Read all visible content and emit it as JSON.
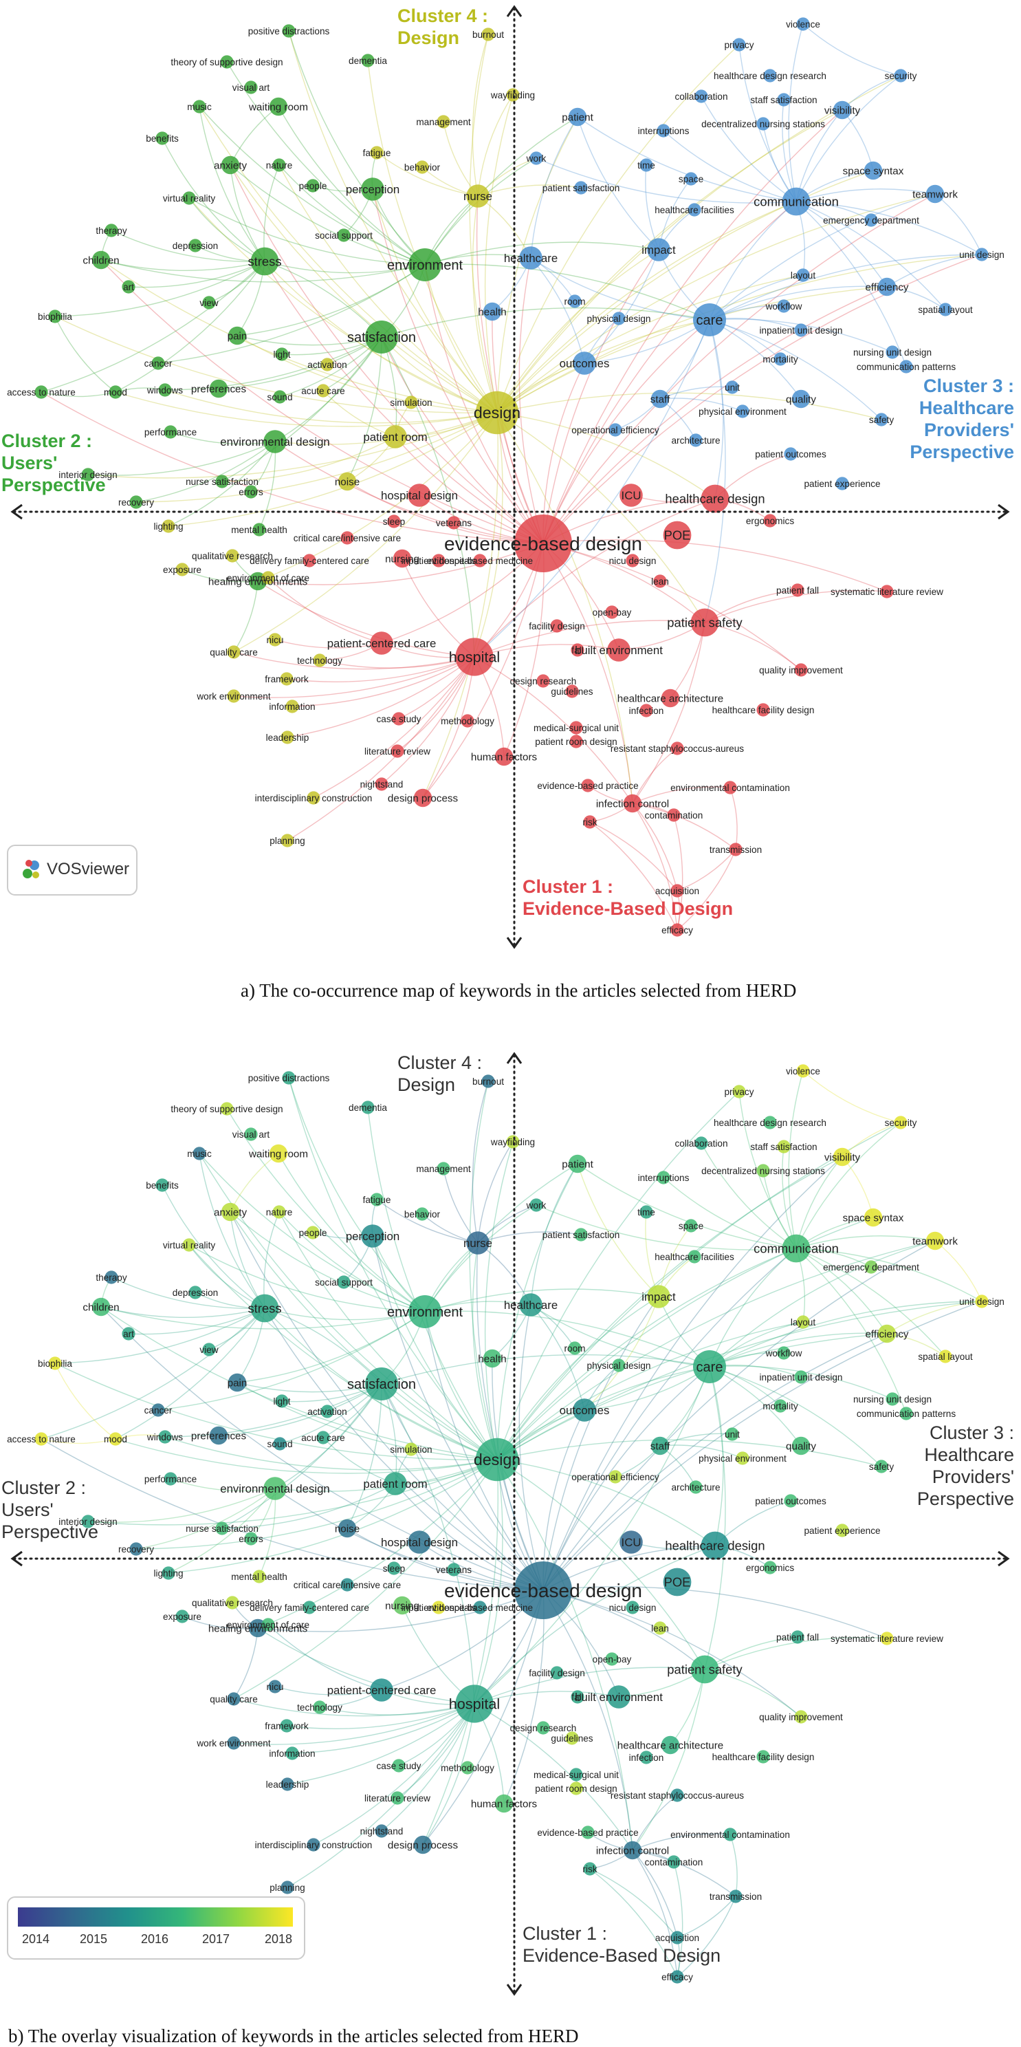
{
  "panel_a": {
    "caption": "a) The co-occurrence map of keywords in the articles selected from HERD",
    "vosviewer_label": "VOSviewer",
    "clusters": [
      {
        "id": 1,
        "title": "Cluster 1 :",
        "subtitle": "Evidence-Based Design",
        "color": "#e0464c"
      },
      {
        "id": 2,
        "title": "Cluster 2 :",
        "subtitle": "Users'",
        "subtitle2": "Perspective",
        "color": "#3aa63a"
      },
      {
        "id": 3,
        "title": "Cluster 3 :",
        "subtitle": "Healthcare",
        "subtitle2": "Providers'",
        "subtitle3": "Perspective",
        "color": "#4a90d0"
      },
      {
        "id": 4,
        "title": "Cluster 4 :",
        "subtitle": "Design",
        "color": "#b9bc1d"
      }
    ]
  },
  "panel_b": {
    "caption": "b) The overlay visualization of keywords in the articles selected from HERD",
    "clusters": [
      {
        "id": 1,
        "title": "Cluster 1 :",
        "subtitle": "Evidence-Based Design"
      },
      {
        "id": 2,
        "title": "Cluster 2 :",
        "subtitle": "Users'",
        "subtitle2": "Perspective"
      },
      {
        "id": 3,
        "title": "Cluster 3 :",
        "subtitle": "Healthcare",
        "subtitle2": "Providers'",
        "subtitle3": "Perspective"
      },
      {
        "id": 4,
        "title": "Cluster 4 :",
        "subtitle": "Design"
      }
    ],
    "legend": {
      "years": [
        "2014",
        "2015",
        "2016",
        "2017",
        "2018"
      ],
      "colors": [
        "#3b3b8f",
        "#31688e",
        "#21918c",
        "#35b779",
        "#90d743",
        "#fde725"
      ]
    }
  },
  "cluster_colors": {
    "1": "#e0464c",
    "2": "#3aa63a",
    "3": "#4a90d0",
    "4": "#c4c42a"
  },
  "keywords": [
    {
      "label": "evidence-based design",
      "cluster": 1,
      "weight": 10,
      "year": 2015.0
    },
    {
      "label": "POE",
      "cluster": 1,
      "weight": 4,
      "year": 2015.5
    },
    {
      "label": "hospital",
      "cluster": 1,
      "weight": 6,
      "year": 2016.0
    },
    {
      "label": "patient safety",
      "cluster": 1,
      "weight": 4,
      "year": 2016.4
    },
    {
      "label": "built environment",
      "cluster": 1,
      "weight": 3,
      "year": 2015.8
    },
    {
      "label": "healthcare design",
      "cluster": 1,
      "weight": 4,
      "year": 2015.6
    },
    {
      "label": "hospital design",
      "cluster": 1,
      "weight": 3,
      "year": 2015.0
    },
    {
      "label": "ICU",
      "cluster": 1,
      "weight": 3,
      "year": 2014.8
    },
    {
      "label": "patient-centered care",
      "cluster": 1,
      "weight": 3,
      "year": 2015.6
    },
    {
      "label": "nursing",
      "cluster": 1,
      "weight": 2,
      "year": 2016.8
    },
    {
      "label": "healthcare architecture",
      "cluster": 1,
      "weight": 2,
      "year": 2016.2
    },
    {
      "label": "infection control",
      "cluster": 1,
      "weight": 2,
      "year": 2015.0
    },
    {
      "label": "design process",
      "cluster": 1,
      "weight": 2,
      "year": 2015.0
    },
    {
      "label": "human factors",
      "cluster": 1,
      "weight": 2,
      "year": 2016.6
    },
    {
      "label": "case study",
      "cluster": 1,
      "weight": 1,
      "year": 2016.5
    },
    {
      "label": "methodology",
      "cluster": 1,
      "weight": 1,
      "year": 2016.6
    },
    {
      "label": "literature review",
      "cluster": 1,
      "weight": 1,
      "year": 2016.5
    },
    {
      "label": "nightstand",
      "cluster": 1,
      "weight": 1,
      "year": 2015.0
    },
    {
      "label": "evidence-based practice",
      "cluster": 1,
      "weight": 1,
      "year": 2016.5
    },
    {
      "label": "environmental contamination",
      "cluster": 1,
      "weight": 1,
      "year": 2016.0
    },
    {
      "label": "contamination",
      "cluster": 1,
      "weight": 1,
      "year": 2016.0
    },
    {
      "label": "risk",
      "cluster": 1,
      "weight": 1,
      "year": 2016.0
    },
    {
      "label": "transmission",
      "cluster": 1,
      "weight": 1,
      "year": 2015.5
    },
    {
      "label": "acquisition",
      "cluster": 1,
      "weight": 1,
      "year": 2015.5
    },
    {
      "label": "efficacy",
      "cluster": 1,
      "weight": 1,
      "year": 2015.5
    },
    {
      "label": "resistant staphylococcus-aureus",
      "cluster": 1,
      "weight": 1,
      "year": 2015.5
    },
    {
      "label": "medical-surgical unit",
      "cluster": 1,
      "weight": 1,
      "year": 2016.0
    },
    {
      "label": "patient room design",
      "cluster": 1,
      "weight": 1,
      "year": 2017.5
    },
    {
      "label": "design research",
      "cluster": 1,
      "weight": 1,
      "year": 2016.5
    },
    {
      "label": "guidelines",
      "cluster": 1,
      "weight": 1,
      "year": 2017.5
    },
    {
      "label": "healthcare facility design",
      "cluster": 1,
      "weight": 1,
      "year": 2016.5
    },
    {
      "label": "quality improvement",
      "cluster": 1,
      "weight": 1,
      "year": 2017.5
    },
    {
      "label": "systematic literature review",
      "cluster": 1,
      "weight": 1,
      "year": 2017.8
    },
    {
      "label": "patient fall",
      "cluster": 1,
      "weight": 1,
      "year": 2016.0
    },
    {
      "label": "fall",
      "cluster": 1,
      "weight": 1,
      "year": 2016.0
    },
    {
      "label": "open-bay",
      "cluster": 1,
      "weight": 1,
      "year": 2016.5
    },
    {
      "label": "lean",
      "cluster": 1,
      "weight": 1,
      "year": 2017.5
    },
    {
      "label": "nicu design",
      "cluster": 1,
      "weight": 1,
      "year": 2016.0
    },
    {
      "label": "ergonomics",
      "cluster": 1,
      "weight": 1,
      "year": 2016.5
    },
    {
      "label": "facility design",
      "cluster": 1,
      "weight": 1,
      "year": 2016.0
    },
    {
      "label": "evidence-based medicine",
      "cluster": 1,
      "weight": 1,
      "year": 2015.5
    },
    {
      "label": "inpatient hospitals",
      "cluster": 1,
      "weight": 1,
      "year": 2017.8
    },
    {
      "label": "veterans",
      "cluster": 1,
      "weight": 1,
      "year": 2016.0
    },
    {
      "label": "sleep",
      "cluster": 1,
      "weight": 1,
      "year": 2016.0
    },
    {
      "label": "critical care/intensive care",
      "cluster": 1,
      "weight": 1,
      "year": 2015.5
    },
    {
      "label": "delivery family-centered care",
      "cluster": 1,
      "weight": 1,
      "year": 2016.0
    },
    {
      "label": "infection",
      "cluster": 1,
      "weight": 1,
      "year": 2016.0
    },
    {
      "label": "healing environments",
      "cluster": 2,
      "weight": 2,
      "year": 2015.0
    },
    {
      "label": "stress",
      "cluster": 2,
      "weight": 4,
      "year": 2016.0
    },
    {
      "label": "satisfaction",
      "cluster": 2,
      "weight": 5,
      "year": 2016.0
    },
    {
      "label": "environment",
      "cluster": 2,
      "weight": 5,
      "year": 2016.3
    },
    {
      "label": "pain",
      "cluster": 2,
      "weight": 2,
      "year": 2015.0
    },
    {
      "label": "anxiety",
      "cluster": 2,
      "weight": 2,
      "year": 2017.5
    },
    {
      "label": "perception",
      "cluster": 2,
      "weight": 3,
      "year": 2015.5
    },
    {
      "label": "environmental design",
      "cluster": 2,
      "weight": 3,
      "year": 2016.6
    },
    {
      "label": "children",
      "cluster": 2,
      "weight": 2,
      "year": 2016.5
    },
    {
      "label": "mood",
      "cluster": 2,
      "weight": 1,
      "year": 2017.8
    },
    {
      "label": "biophilia",
      "cluster": 2,
      "weight": 1,
      "year": 2017.8
    },
    {
      "label": "access to nature",
      "cluster": 2,
      "weight": 1,
      "year": 2017.8
    },
    {
      "label": "nature",
      "cluster": 2,
      "weight": 1,
      "year": 2017.5
    },
    {
      "label": "music",
      "cluster": 2,
      "weight": 1,
      "year": 2015.0
    },
    {
      "label": "benefits",
      "cluster": 2,
      "weight": 1,
      "year": 2016.0
    },
    {
      "label": "virtual reality",
      "cluster": 2,
      "weight": 1,
      "year": 2017.5
    },
    {
      "label": "therapy",
      "cluster": 2,
      "weight": 1,
      "year": 2015.0
    },
    {
      "label": "depression",
      "cluster": 2,
      "weight": 1,
      "year": 2016.0
    },
    {
      "label": "art",
      "cluster": 2,
      "weight": 1,
      "year": 2016.0
    },
    {
      "label": "view",
      "cluster": 2,
      "weight": 1,
      "year": 2016.0
    },
    {
      "label": "cancer",
      "cluster": 2,
      "weight": 1,
      "year": 2015.0
    },
    {
      "label": "windows",
      "cluster": 2,
      "weight": 1,
      "year": 2016.0
    },
    {
      "label": "preferences",
      "cluster": 2,
      "weight": 2,
      "year": 2015.0
    },
    {
      "label": "light",
      "cluster": 2,
      "weight": 1,
      "year": 2016.0
    },
    {
      "label": "sound",
      "cluster": 2,
      "weight": 1,
      "year": 2015.5
    },
    {
      "label": "performance",
      "cluster": 2,
      "weight": 1,
      "year": 2016.0
    },
    {
      "label": "interior design",
      "cluster": 2,
      "weight": 1,
      "year": 2016.0
    },
    {
      "label": "recovery",
      "cluster": 2,
      "weight": 1,
      "year": 2015.0
    },
    {
      "label": "nurse satisfaction",
      "cluster": 2,
      "weight": 1,
      "year": 2016.5
    },
    {
      "label": "errors",
      "cluster": 2,
      "weight": 1,
      "year": 2016.5
    },
    {
      "label": "mental health",
      "cluster": 2,
      "weight": 1,
      "year": 2017.5
    },
    {
      "label": "positive distractions",
      "cluster": 2,
      "weight": 1,
      "year": 2016.0
    },
    {
      "label": "theory of supportive design",
      "cluster": 2,
      "weight": 1,
      "year": 2017.5
    },
    {
      "label": "visual art",
      "cluster": 2,
      "weight": 1,
      "year": 2016.5
    },
    {
      "label": "waiting room",
      "cluster": 2,
      "weight": 2,
      "year": 2017.8
    },
    {
      "label": "people",
      "cluster": 2,
      "weight": 1,
      "year": 2017.5
    },
    {
      "label": "social support",
      "cluster": 2,
      "weight": 1,
      "year": 2016.0
    },
    {
      "label": "dementia",
      "cluster": 2,
      "weight": 1,
      "year": 2016.0
    },
    {
      "label": "patient room",
      "cluster": 4,
      "weight": 3,
      "year": 2016.0
    },
    {
      "label": "design",
      "cluster": 4,
      "weight": 7,
      "year": 2016.2
    },
    {
      "label": "nurse",
      "cluster": 4,
      "weight": 3,
      "year": 2014.8
    },
    {
      "label": "noise",
      "cluster": 4,
      "weight": 2,
      "year": 2015.0
    },
    {
      "label": "simulation",
      "cluster": 4,
      "weight": 1,
      "year": 2017.5
    },
    {
      "label": "management",
      "cluster": 4,
      "weight": 1,
      "year": 2016.5
    },
    {
      "label": "fatigue",
      "cluster": 4,
      "weight": 1,
      "year": 2016.5
    },
    {
      "label": "behavior",
      "cluster": 4,
      "weight": 1,
      "year": 2016.5
    },
    {
      "label": "wayfinding",
      "cluster": 4,
      "weight": 1,
      "year": 2017.5
    },
    {
      "label": "burnout",
      "cluster": 4,
      "weight": 1,
      "year": 2015.0
    },
    {
      "label": "acute care",
      "cluster": 4,
      "weight": 1,
      "year": 2016.0
    },
    {
      "label": "activation",
      "cluster": 4,
      "weight": 1,
      "year": 2016.0
    },
    {
      "label": "lighting",
      "cluster": 4,
      "weight": 1,
      "year": 2016.0
    },
    {
      "label": "exposure",
      "cluster": 4,
      "weight": 1,
      "year": 2016.0
    },
    {
      "label": "qualitative research",
      "cluster": 4,
      "weight": 1,
      "year": 2017.5
    },
    {
      "label": "environment of care",
      "cluster": 4,
      "weight": 1,
      "year": 2016.5
    },
    {
      "label": "quality care",
      "cluster": 4,
      "weight": 1,
      "year": 2015.0
    },
    {
      "label": "nicu",
      "cluster": 4,
      "weight": 1,
      "year": 2015.0
    },
    {
      "label": "technology",
      "cluster": 4,
      "weight": 1,
      "year": 2016.5
    },
    {
      "label": "framework",
      "cluster": 4,
      "weight": 1,
      "year": 2016.0
    },
    {
      "label": "work environment",
      "cluster": 4,
      "weight": 1,
      "year": 2015.0
    },
    {
      "label": "information",
      "cluster": 4,
      "weight": 1,
      "year": 2016.0
    },
    {
      "label": "leadership",
      "cluster": 4,
      "weight": 1,
      "year": 2015.0
    },
    {
      "label": "interdisciplinary construction",
      "cluster": 4,
      "weight": 1,
      "year": 2015.0
    },
    {
      "label": "planning",
      "cluster": 4,
      "weight": 1,
      "year": 2015.0
    },
    {
      "label": "patient satisfaction",
      "cluster": 3,
      "weight": 1,
      "year": 2016.5
    },
    {
      "label": "healthcare",
      "cluster": 3,
      "weight": 3,
      "year": 2015.8
    },
    {
      "label": "health",
      "cluster": 3,
      "weight": 2,
      "year": 2016.5
    },
    {
      "label": "room",
      "cluster": 3,
      "weight": 1,
      "year": 2016.5
    },
    {
      "label": "outcomes",
      "cluster": 3,
      "weight": 3,
      "year": 2015.5
    },
    {
      "label": "care",
      "cluster": 3,
      "weight": 5,
      "year": 2016.2
    },
    {
      "label": "impact",
      "cluster": 3,
      "weight": 3,
      "year": 2017.5
    },
    {
      "label": "patient",
      "cluster": 3,
      "weight": 2,
      "year": 2016.5
    },
    {
      "label": "work",
      "cluster": 3,
      "weight": 1,
      "year": 2016.0
    },
    {
      "label": "time",
      "cluster": 3,
      "weight": 1,
      "year": 2016.0
    },
    {
      "label": "space",
      "cluster": 3,
      "weight": 1,
      "year": 2016.5
    },
    {
      "label": "communication",
      "cluster": 3,
      "weight": 4,
      "year": 2016.5
    },
    {
      "label": "healthcare facilities",
      "cluster": 3,
      "weight": 1,
      "year": 2016.5
    },
    {
      "label": "collaboration",
      "cluster": 3,
      "weight": 1,
      "year": 2016.0
    },
    {
      "label": "interruptions",
      "cluster": 3,
      "weight": 1,
      "year": 2016.5
    },
    {
      "label": "privacy",
      "cluster": 3,
      "weight": 1,
      "year": 2017.5
    },
    {
      "label": "violence",
      "cluster": 3,
      "weight": 1,
      "year": 2017.8
    },
    {
      "label": "healthcare design research",
      "cluster": 3,
      "weight": 1,
      "year": 2016.5
    },
    {
      "label": "staff satisfaction",
      "cluster": 3,
      "weight": 1,
      "year": 2017.5
    },
    {
      "label": "decentralized nursing stations",
      "cluster": 3,
      "weight": 1,
      "year": 2017.0
    },
    {
      "label": "visibility",
      "cluster": 3,
      "weight": 2,
      "year": 2017.8
    },
    {
      "label": "security",
      "cluster": 3,
      "weight": 1,
      "year": 2017.8
    },
    {
      "label": "space syntax",
      "cluster": 3,
      "weight": 2,
      "year": 2017.8
    },
    {
      "label": "teamwork",
      "cluster": 3,
      "weight": 2,
      "year": 2017.8
    },
    {
      "label": "emergency department",
      "cluster": 3,
      "weight": 1,
      "year": 2017.0
    },
    {
      "label": "unit design",
      "cluster": 3,
      "weight": 1,
      "year": 2017.8
    },
    {
      "label": "layout",
      "cluster": 3,
      "weight": 1,
      "year": 2017.5
    },
    {
      "label": "efficiency",
      "cluster": 3,
      "weight": 2,
      "year": 2017.5
    },
    {
      "label": "spatial layout",
      "cluster": 3,
      "weight": 1,
      "year": 2017.8
    },
    {
      "label": "workflow",
      "cluster": 3,
      "weight": 1,
      "year": 2016.5
    },
    {
      "label": "inpatient unit design",
      "cluster": 3,
      "weight": 1,
      "year": 2016.5
    },
    {
      "label": "mortality",
      "cluster": 3,
      "weight": 1,
      "year": 2016.5
    },
    {
      "label": "nursing unit design",
      "cluster": 3,
      "weight": 1,
      "year": 2016.5
    },
    {
      "label": "communication patterns",
      "cluster": 3,
      "weight": 1,
      "year": 2016.5
    },
    {
      "label": "quality",
      "cluster": 3,
      "weight": 2,
      "year": 2016.5
    },
    {
      "label": "unit",
      "cluster": 3,
      "weight": 1,
      "year": 2016.5
    },
    {
      "label": "physical environment",
      "cluster": 3,
      "weight": 1,
      "year": 2017.5
    },
    {
      "label": "physical design",
      "cluster": 3,
      "weight": 1,
      "year": 2016.5
    },
    {
      "label": "staff",
      "cluster": 3,
      "weight": 2,
      "year": 2016.0
    },
    {
      "label": "safety",
      "cluster": 3,
      "weight": 1,
      "year": 2016.5
    },
    {
      "label": "operational efficiency",
      "cluster": 3,
      "weight": 1,
      "year": 2017.5
    },
    {
      "label": "architecture",
      "cluster": 3,
      "weight": 1,
      "year": 2016.5
    },
    {
      "label": "patient outcomes",
      "cluster": 3,
      "weight": 1,
      "year": 2016.5
    },
    {
      "label": "patient experience",
      "cluster": 3,
      "weight": 1,
      "year": 2017.5
    }
  ]
}
